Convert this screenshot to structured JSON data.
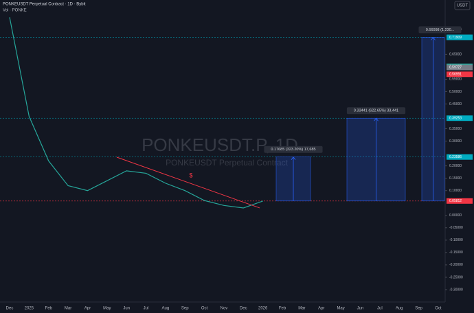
{
  "chart_data": {
    "type": "line",
    "title": "PONKEUSDT Perpetual Contract · 1D · Bybit",
    "subtitle": "Vol · PONKE",
    "currency": "USDT",
    "watermark": "PONKEUSDT.P, 1D",
    "watermark_subtitle": "PONKEUSDT Perpetual Contract",
    "categories": [
      "Dec",
      "2025",
      "Feb",
      "Mar",
      "Apr",
      "May",
      "Jun",
      "Jul",
      "Aug",
      "Sep",
      "Oct",
      "Nov",
      "Dec",
      "2026",
      "Feb",
      "Mar",
      "Apr",
      "May",
      "Jun",
      "Jul",
      "Aug",
      "Sep",
      "Oct"
    ],
    "series": [
      {
        "color": "#26a69a",
        "values": [
          0.8,
          0.4,
          0.22,
          0.12,
          0.1,
          0.14,
          0.18,
          0.17,
          0.13,
          0.1,
          0.06,
          0.04,
          0.03,
          0.058,
          null,
          null,
          null,
          null,
          null,
          null,
          null,
          null,
          null
        ]
      }
    ],
    "ylim": [
      -0.35,
      0.87
    ],
    "yticks": [
      {
        "value": 0.75,
        "label": "0.75000"
      },
      {
        "value": 0.65,
        "label": "0.65000"
      },
      {
        "value": 0.55,
        "label": "0.55000"
      },
      {
        "value": 0.5,
        "label": "0.50000"
      },
      {
        "value": 0.45,
        "label": "0.45000"
      },
      {
        "value": 0.35,
        "label": "0.35000"
      },
      {
        "value": 0.3,
        "label": "0.30000"
      },
      {
        "value": 0.2,
        "label": "0.20000"
      },
      {
        "value": 0.15,
        "label": "0.15000"
      },
      {
        "value": 0.1,
        "label": "0.10000"
      },
      {
        "value": 0,
        "label": "0.00000"
      },
      {
        "value": -0.05,
        "label": "-0.05000"
      },
      {
        "value": -0.1,
        "label": "-0.10000"
      },
      {
        "value": -0.15,
        "label": "-0.15000"
      },
      {
        "value": -0.2,
        "label": "-0.20000"
      },
      {
        "value": -0.25,
        "label": "-0.25000"
      },
      {
        "value": -0.3,
        "label": "-0.30000"
      }
    ],
    "price_badges": [
      {
        "value": 0.71909,
        "color": "#00acc1"
      },
      {
        "value": 0.60197,
        "color": "#26a69a"
      },
      {
        "value": 0.59727,
        "color": "#787b86"
      },
      {
        "value": 0.56991,
        "color": "#f23645"
      },
      {
        "value": 0.39253,
        "color": "#00acc1"
      },
      {
        "value": 0.23586,
        "color": "#00acc1"
      },
      {
        "value": 0.05812,
        "color": "#f23645"
      }
    ],
    "entry": 0.05812,
    "projections": [
      {
        "target": 0.23586,
        "label": "0.17685 (323.20%) 17,685"
      },
      {
        "target": 0.39253,
        "label": "0.33441 (622.65%) 33,441"
      },
      {
        "target": 0.71909,
        "label": "0.66098 (1,230..."
      }
    ],
    "trendline": {
      "values": [
        0.235,
        0.03
      ],
      "annotation": "$",
      "color": "#f23645"
    }
  }
}
